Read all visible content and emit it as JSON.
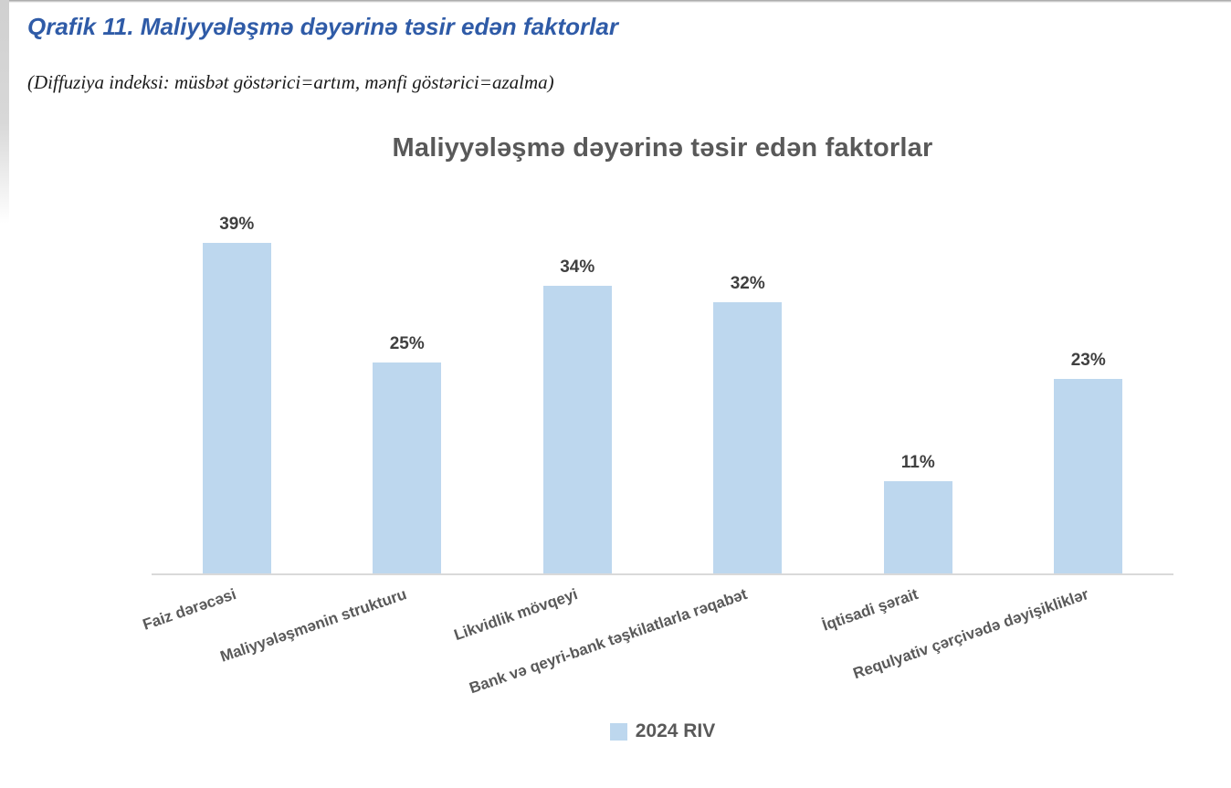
{
  "page": {
    "heading": "Qrafik 11. Maliyyələşmə dəyərinə təsir edən faktorlar",
    "subtitle": "(Diffuziya indeksi: müsbət göstərici=artım, mənfi göstərici=azalma)"
  },
  "colors": {
    "heading_blue": "#2F5BA7",
    "bar_fill": "#BDD7EE",
    "axis_line": "#D9D9D9",
    "chart_text": "#595959",
    "value_label": "#404040"
  },
  "chart_data": {
    "type": "bar",
    "title": "Maliyyələşmə dəyərinə təsir edən faktorlar",
    "categories": [
      "Faiz dərəcəsi",
      "Maliyyələşmənin strukturu",
      "Likvidlik mövqeyi",
      "Bank və qeyri-bank təşkilatlarla rəqabət",
      "İqtisadi şərait",
      "Requlyativ çərçivədə dəyişikliklər"
    ],
    "series": [
      {
        "name": "2024 RIV",
        "values": [
          39,
          25,
          34,
          32,
          11,
          23
        ]
      }
    ],
    "value_labels": [
      "39%",
      "25%",
      "34%",
      "32%",
      "11%",
      "23%"
    ],
    "unit": "%",
    "xlabel": "",
    "ylabel": "",
    "ylim": [
      0,
      40
    ],
    "grid": false,
    "legend_position": "bottom",
    "bar_color": "#BDD7EE",
    "category_label_rotation_deg": -19
  }
}
